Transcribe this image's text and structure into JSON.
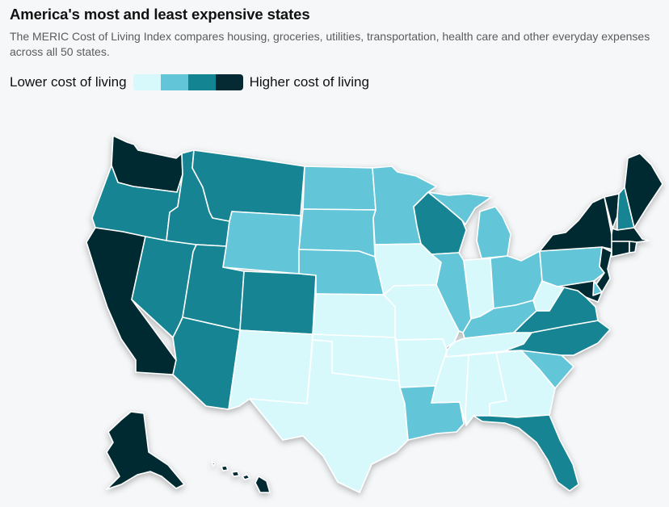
{
  "title": "America's most and least expensive states",
  "subtitle": "The MERIC Cost of Living Index compares housing, groceries, utilities, transportation, health care and other everyday expenses across all 50 states.",
  "legend": {
    "low_label": "Lower cost of living",
    "high_label": "Higher cost of living",
    "colors": [
      "#d7f9fc",
      "#62c6d8",
      "#138492",
      "#052a33"
    ]
  },
  "map_data": {
    "type": "choropleth",
    "tiers": [
      "lowest",
      "low",
      "high",
      "highest"
    ],
    "states": {
      "WA": 3,
      "OR": 2,
      "CA": 3,
      "NV": 2,
      "ID": 2,
      "MT": 2,
      "WY": 1,
      "UT": 2,
      "AZ": 2,
      "CO": 2,
      "NM": 0,
      "ND": 1,
      "SD": 1,
      "NE": 1,
      "KS": 0,
      "OK": 0,
      "TX": 0,
      "MN": 1,
      "IA": 0,
      "MO": 0,
      "AR": 0,
      "LA": 1,
      "WI": 2,
      "IL": 1,
      "MI": 1,
      "IN": 0,
      "OH": 1,
      "KY": 1,
      "TN": 0,
      "MS": 0,
      "AL": 0,
      "GA": 0,
      "FL": 2,
      "SC": 1,
      "NC": 2,
      "VA": 2,
      "WV": 0,
      "PA": 1,
      "NY": 3,
      "VT": 3,
      "NH": 2,
      "ME": 3,
      "MA": 3,
      "RI": 3,
      "CT": 3,
      "NJ": 3,
      "DE": 1,
      "MD": 3,
      "AK": 3,
      "HI": 3
    }
  }
}
